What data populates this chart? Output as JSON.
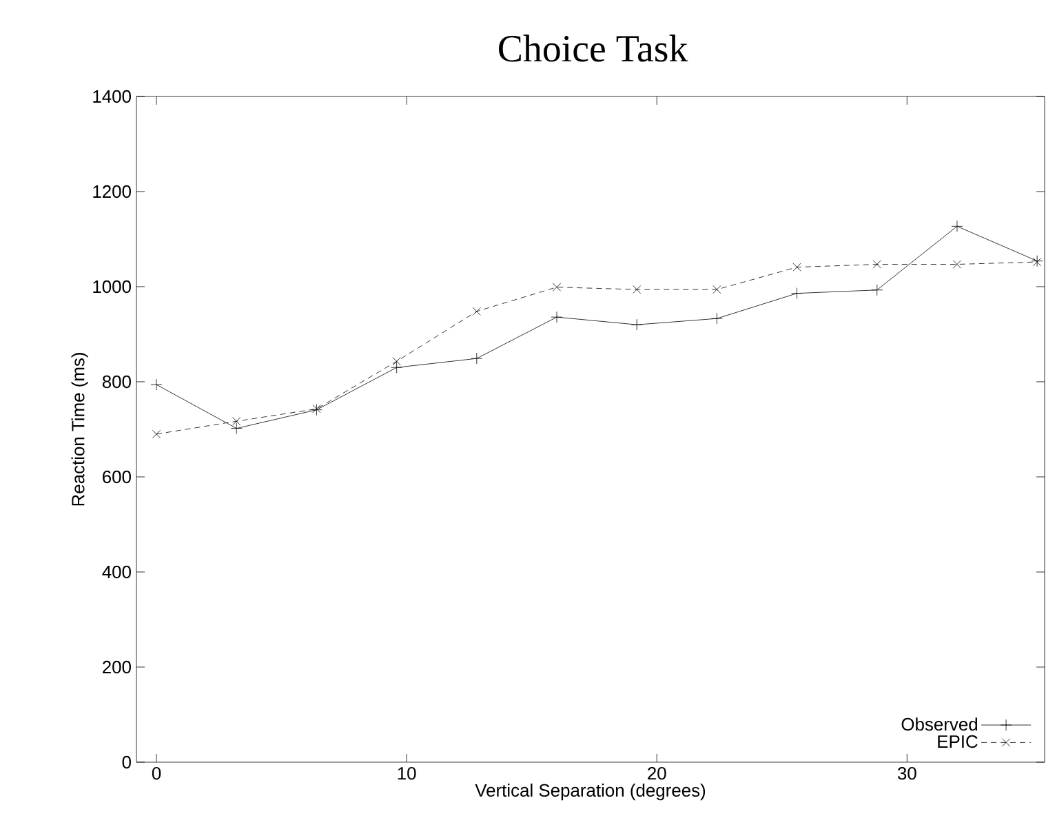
{
  "chart_data": {
    "type": "line",
    "title": "Choice Task",
    "xlabel": "Vertical Separation (degrees)",
    "ylabel": "Reaction Time (ms)",
    "xlim": [
      -0.8,
      35.5
    ],
    "ylim": [
      0,
      1400
    ],
    "xticks": [
      0,
      10,
      20,
      30
    ],
    "yticks": [
      0,
      200,
      400,
      600,
      800,
      1000,
      1200,
      1400
    ],
    "x": [
      0,
      3.2,
      6.4,
      9.6,
      12.8,
      16,
      19.2,
      22.4,
      25.6,
      28.8,
      32,
      35.2
    ],
    "series": [
      {
        "name": "Observed",
        "color": "#000000",
        "marker": "plus",
        "line_style": "solid",
        "values": [
          794,
          702,
          741,
          830,
          849,
          936,
          920,
          933,
          986,
          993,
          1127,
          1054
        ]
      },
      {
        "name": "EPIC",
        "color": "#000000",
        "marker": "cross",
        "line_style": "dashed",
        "values": [
          690,
          717,
          743,
          843,
          948,
          999,
          994,
          994,
          1041,
          1047,
          1047,
          1052
        ]
      }
    ],
    "legend": "bottom right",
    "grid": false
  }
}
